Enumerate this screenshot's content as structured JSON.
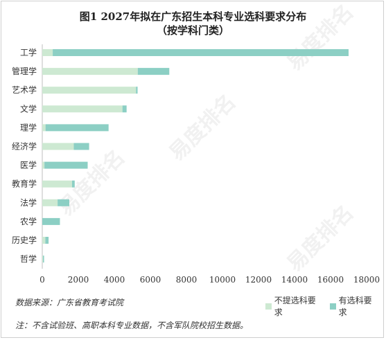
{
  "title_line1": "图1  2027年拟在广东招生本科专业选科要求分布",
  "title_line2": "（按学科门类）",
  "source": "数据来源：广东省教育考试院",
  "note": "注：不含试验班、高职本科专业数据，不含军队院校招生数据。",
  "watermark_text": "易度排名",
  "colors": {
    "no_req": "#cde9d2",
    "has_req": "#8ccfc4"
  },
  "chart_data": {
    "type": "bar",
    "orientation": "horizontal",
    "stacked": true,
    "categories": [
      "工学",
      "管理学",
      "艺术学",
      "文学",
      "理学",
      "经济学",
      "医学",
      "教育学",
      "法学",
      "农学",
      "历史学",
      "哲学"
    ],
    "series": [
      {
        "name": "不提选科要求",
        "values": [
          580,
          5300,
          5200,
          4450,
          180,
          1750,
          120,
          1650,
          850,
          0,
          170,
          40
        ]
      },
      {
        "name": "有选科要求",
        "values": [
          16420,
          1750,
          90,
          230,
          3500,
          850,
          2400,
          150,
          650,
          980,
          180,
          60
        ]
      }
    ],
    "xlim": [
      0,
      18000
    ],
    "xticks": [
      0,
      2000,
      4000,
      6000,
      8000,
      10000,
      12000,
      14000,
      16000,
      18000
    ],
    "grid": false,
    "legend_position": "bottom-right"
  }
}
